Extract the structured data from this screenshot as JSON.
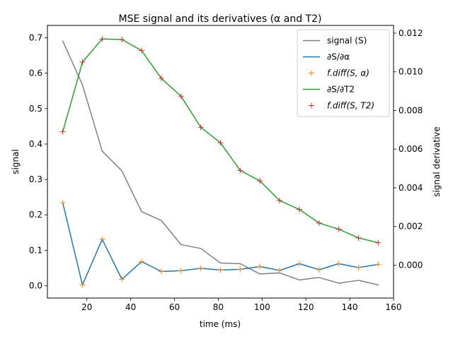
{
  "chart_data": {
    "type": "line",
    "title": "MSE signal and its derivatives (α and T2)",
    "xlabel": "time (ms)",
    "ylabel_left": "signal",
    "ylabel_right": "signal derivative",
    "xlim": [
      2,
      160
    ],
    "ylim_left": [
      -0.035,
      0.735
    ],
    "ylim_right": [
      -0.0017,
      0.0124
    ],
    "x_ticks": [
      20,
      40,
      60,
      80,
      100,
      120,
      140,
      160
    ],
    "y_ticks_left": [
      0.0,
      0.1,
      0.2,
      0.3,
      0.4,
      0.5,
      0.6,
      0.7
    ],
    "y_ticks_right": [
      0.0,
      0.002,
      0.004,
      0.006,
      0.008,
      0.01,
      0.012
    ],
    "x_tick_labels": [
      "20",
      "40",
      "60",
      "80",
      "100",
      "120",
      "140",
      "160"
    ],
    "y_tick_labels_left": [
      "0.0",
      "0.1",
      "0.2",
      "0.3",
      "0.4",
      "0.5",
      "0.6",
      "0.7"
    ],
    "y_tick_labels_right": [
      "0.000",
      "0.002",
      "0.004",
      "0.006",
      "0.008",
      "0.010",
      "0.012"
    ],
    "x": [
      9,
      18,
      27,
      36,
      45,
      54,
      63,
      72,
      81,
      90,
      99,
      108,
      117,
      126,
      135,
      144,
      153
    ],
    "legend_position": "top-right",
    "grid": false,
    "series": [
      {
        "name": "signal (S)",
        "axis": "left",
        "style": "line",
        "color": "#808080",
        "values": [
          0.691,
          0.567,
          0.38,
          0.324,
          0.209,
          0.184,
          0.116,
          0.105,
          0.064,
          0.062,
          0.033,
          0.036,
          0.016,
          0.023,
          0.007,
          0.015,
          0.002
        ]
      },
      {
        "name": "∂S/∂α",
        "axis": "left",
        "style": "line",
        "color": "#1f77b4",
        "values": [
          0.234,
          0.002,
          0.131,
          0.018,
          0.068,
          0.04,
          0.042,
          0.049,
          0.044,
          0.046,
          0.054,
          0.043,
          0.062,
          0.045,
          0.062,
          0.051,
          0.06
        ]
      },
      {
        "name": "f.diff(S, α)",
        "axis": "left",
        "style": "marker",
        "color": "#ff7f0e",
        "values": [
          0.234,
          0.002,
          0.131,
          0.018,
          0.068,
          0.04,
          0.042,
          0.049,
          0.044,
          0.046,
          0.054,
          0.043,
          0.062,
          0.045,
          0.062,
          0.051,
          0.06
        ]
      },
      {
        "name": "∂S/∂T2",
        "axis": "right",
        "style": "line",
        "color": "#2ca02c",
        "values": [
          0.0069,
          0.0105,
          0.0117,
          0.01167,
          0.0111,
          0.00966,
          0.00874,
          0.00713,
          0.00633,
          0.0049,
          0.00436,
          0.00334,
          0.00288,
          0.00218,
          0.00186,
          0.00141,
          0.00116
        ]
      },
      {
        "name": "f.diff(S, T2)",
        "axis": "right",
        "style": "marker",
        "color": "#d62728",
        "values": [
          0.0069,
          0.0105,
          0.0117,
          0.01167,
          0.0111,
          0.00966,
          0.00874,
          0.00713,
          0.00633,
          0.0049,
          0.00436,
          0.00334,
          0.00288,
          0.00218,
          0.00186,
          0.00141,
          0.00116
        ]
      }
    ]
  }
}
